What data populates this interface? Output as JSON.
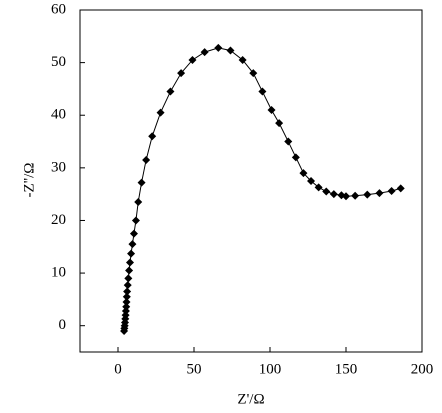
{
  "chart_data": {
    "type": "scatter",
    "x_label": "Z'/Ω",
    "y_label": "-Z''/Ω",
    "xlim": [
      -25,
      200
    ],
    "ylim": [
      -5,
      60
    ],
    "xticks": [
      0,
      50,
      100,
      150,
      200
    ],
    "yticks": [
      0,
      10,
      20,
      30,
      40,
      50,
      60
    ],
    "color": "#000000",
    "line": true,
    "x": [
      4,
      4.2,
      4.4,
      4.6,
      4.8,
      5,
      5.2,
      5.4,
      5.6,
      5.8,
      6,
      6.4,
      6.8,
      7.3,
      7.9,
      8.6,
      9.5,
      10.5,
      11.8,
      13.3,
      15.5,
      18.5,
      22.5,
      28,
      34.5,
      41.5,
      49,
      57,
      66,
      74,
      82,
      89,
      95,
      101,
      106,
      112,
      117,
      122,
      127,
      132,
      137,
      142,
      147,
      150,
      156,
      164,
      172,
      180,
      186
    ],
    "values": [
      -1,
      -0.5,
      0,
      0.6,
      1.3,
      2,
      2.8,
      3.6,
      4.5,
      5.5,
      6.5,
      7.7,
      9,
      10.5,
      12,
      13.7,
      15.5,
      17.5,
      20,
      23.5,
      27.2,
      31.5,
      36,
      40.5,
      44.5,
      48,
      50.5,
      52,
      52.8,
      52.3,
      50.5,
      48,
      44.5,
      41,
      38.5,
      35,
      32,
      29,
      27.5,
      26.3,
      25.5,
      25,
      24.8,
      24.6,
      24.7,
      24.9,
      25.2,
      25.6,
      26.1
    ]
  }
}
